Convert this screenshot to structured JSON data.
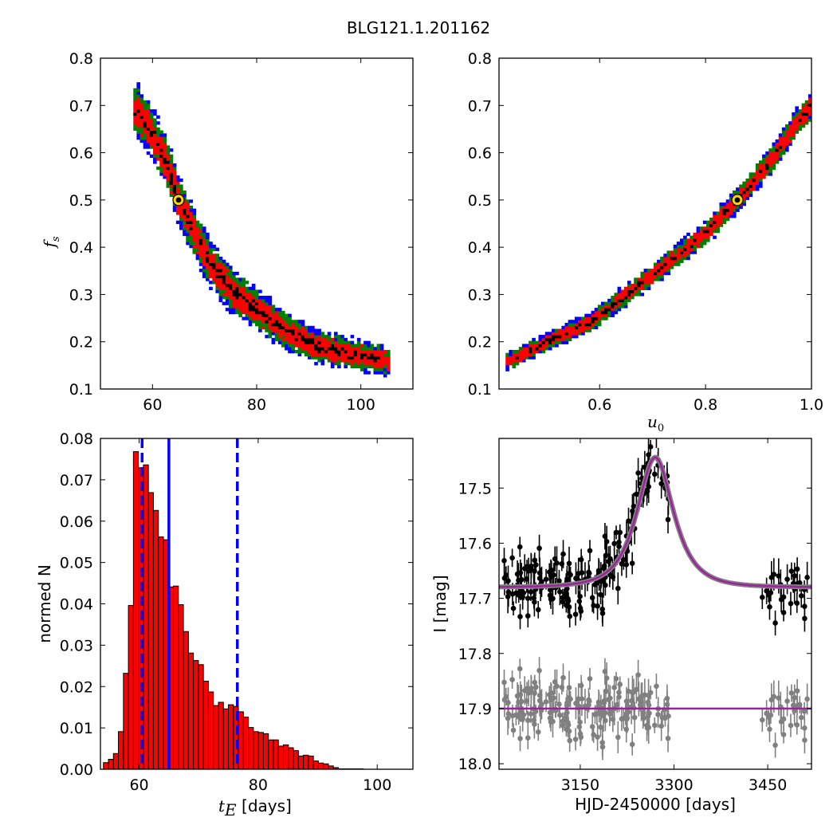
{
  "figure": {
    "title": "BLG121.1.201162"
  },
  "chart_data": [
    {
      "id": "fs_vs_tE",
      "type": "heatmap",
      "xlim": [
        50,
        110
      ],
      "ylim": [
        0.1,
        0.8
      ],
      "xticks": [
        "60",
        "80",
        "100"
      ],
      "xtick_values": [
        60,
        80,
        100
      ],
      "yticks": [
        "0.1",
        "0.2",
        "0.3",
        "0.4",
        "0.5",
        "0.6",
        "0.7",
        "0.8"
      ],
      "ytick_values": [
        0.1,
        0.2,
        0.3,
        0.4,
        0.5,
        0.6,
        0.7,
        0.8
      ],
      "xlabel": "",
      "ylabel": "f_s",
      "levels_colors": [
        "#0000ff",
        "#008000",
        "#ff0000",
        "#000000"
      ],
      "ridge": [
        [
          57,
          0.69
        ],
        [
          60,
          0.64
        ],
        [
          63,
          0.57
        ],
        [
          65,
          0.5
        ],
        [
          68,
          0.43
        ],
        [
          71,
          0.37
        ],
        [
          75,
          0.31
        ],
        [
          80,
          0.27
        ],
        [
          86,
          0.22
        ],
        [
          92,
          0.19
        ],
        [
          100,
          0.17
        ],
        [
          105,
          0.16
        ]
      ],
      "best_fit": {
        "x": 65.0,
        "y": 0.5,
        "color": "#ffd700"
      }
    },
    {
      "id": "fs_vs_u0",
      "type": "heatmap",
      "xlim": [
        0.41,
        1.0
      ],
      "ylim": [
        0.1,
        0.8
      ],
      "xticks": [
        "0.6",
        "0.8",
        "1.0"
      ],
      "xtick_values": [
        0.6,
        0.8,
        1.0
      ],
      "yticks": [
        "0.1",
        "0.2",
        "0.3",
        "0.4",
        "0.5",
        "0.6",
        "0.7",
        "0.8"
      ],
      "ytick_values": [
        0.1,
        0.2,
        0.3,
        0.4,
        0.5,
        0.6,
        0.7,
        0.8
      ],
      "xlabel": "u_0",
      "ylabel": "",
      "levels_colors": [
        "#0000ff",
        "#008000",
        "#ff0000",
        "#000000"
      ],
      "ridge": [
        [
          0.43,
          0.16
        ],
        [
          0.5,
          0.2
        ],
        [
          0.58,
          0.24
        ],
        [
          0.65,
          0.3
        ],
        [
          0.72,
          0.36
        ],
        [
          0.8,
          0.43
        ],
        [
          0.86,
          0.5
        ],
        [
          0.92,
          0.58
        ],
        [
          0.97,
          0.66
        ],
        [
          1.0,
          0.7
        ]
      ],
      "best_fit": {
        "x": 0.86,
        "y": 0.5,
        "color": "#ffd700"
      }
    },
    {
      "id": "tE_histogram",
      "type": "bar",
      "xlim": [
        53.5,
        106
      ],
      "ylim": [
        0,
        0.08
      ],
      "xticks": [
        "60",
        "80",
        "100"
      ],
      "xtick_values": [
        60,
        80,
        100
      ],
      "yticks": [
        "0.00",
        "0.01",
        "0.02",
        "0.03",
        "0.04",
        "0.05",
        "0.06",
        "0.07",
        "0.08"
      ],
      "ytick_values": [
        0,
        0.01,
        0.02,
        0.03,
        0.04,
        0.05,
        0.06,
        0.07,
        0.08
      ],
      "xlabel_math": "t_E",
      "xlabel_text": " [days]",
      "ylabel": "normed N",
      "bar_color": "#ff0000",
      "bin_start": 54.0,
      "bin_width": 0.84,
      "values": [
        0.0016,
        0.0024,
        0.0038,
        0.0091,
        0.0232,
        0.0396,
        0.0768,
        0.0729,
        0.0736,
        0.0669,
        0.0626,
        0.0562,
        0.0555,
        0.0441,
        0.0443,
        0.0398,
        0.0333,
        0.0281,
        0.0263,
        0.0253,
        0.0213,
        0.0187,
        0.0154,
        0.0162,
        0.0146,
        0.0156,
        0.0152,
        0.0139,
        0.0126,
        0.0101,
        0.0091,
        0.0089,
        0.0086,
        0.0071,
        0.0071,
        0.0056,
        0.0059,
        0.0052,
        0.0045,
        0.0032,
        0.0034,
        0.0032,
        0.002,
        0.0015,
        0.0013,
        0.0008,
        0.0004,
        0.0001,
        0.0001,
        0.0001,
        0.0001,
        0.0001
      ],
      "vlines": [
        {
          "x": 60.5,
          "style": "dashed",
          "color": "#0000ff"
        },
        {
          "x": 65.0,
          "style": "solid",
          "color": "#0000ff"
        },
        {
          "x": 76.5,
          "style": "dashed",
          "color": "#0000ff"
        }
      ]
    },
    {
      "id": "lightcurve",
      "type": "scatter",
      "xlim": [
        3020,
        3520
      ],
      "ylim": [
        18.01,
        17.41
      ],
      "y_inverted": true,
      "xticks": [
        "3150",
        "3300",
        "3450"
      ],
      "xtick_values": [
        3150,
        3300,
        3450
      ],
      "yticks": [
        "17.5",
        "17.6",
        "17.7",
        "17.8",
        "17.9",
        "18.0"
      ],
      "ytick_values": [
        17.5,
        17.6,
        17.7,
        17.8,
        17.9,
        18.0
      ],
      "xlabel": "HJD-2450000 [days]",
      "ylabel": "I [mag]",
      "model_color": "#a020a0",
      "model": {
        "t0": 3270,
        "tE": 65,
        "u0": 0.86,
        "fs": 0.5,
        "baseline": 17.68
      },
      "data_color": "#000000",
      "residual_color": "#808080",
      "residual_baseline": 17.9,
      "data_groups": [
        {
          "t_start": 3028,
          "t_end": 3295,
          "n": 180
        },
        {
          "t_start": 3435,
          "t_end": 3520,
          "n": 28
        }
      ]
    }
  ]
}
